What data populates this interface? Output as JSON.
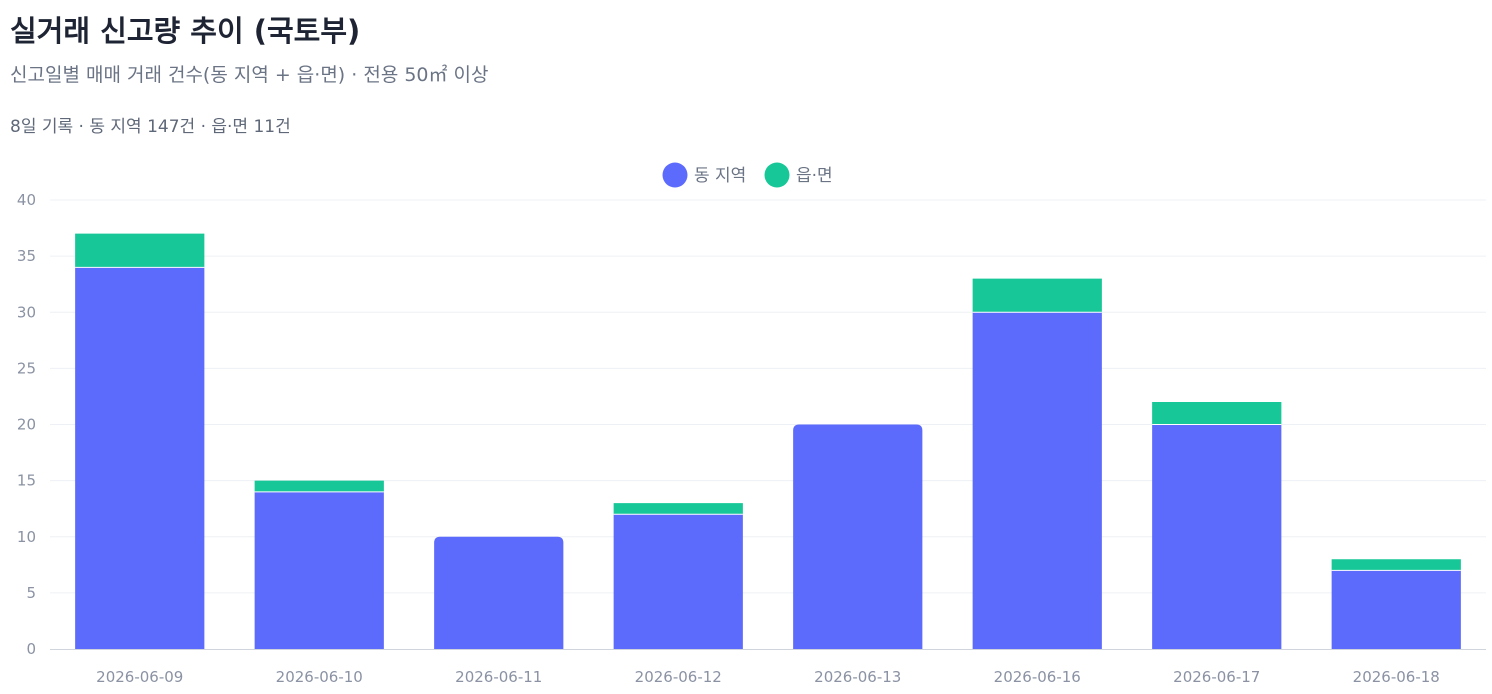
{
  "header": {
    "title": "실거래 신고량 추이 (국토부)",
    "subtitle": "신고일별 매매 거래 건수(동 지역 + 읍·면) · 전용 50㎡ 이상",
    "summary": "8일 기록 · 동 지역 147건 · 읍·면 11건"
  },
  "chart_data": {
    "type": "bar",
    "stacked": true,
    "categories": [
      "2026-06-09",
      "2026-06-10",
      "2026-06-11",
      "2026-06-12",
      "2026-06-13",
      "2026-06-16",
      "2026-06-17",
      "2026-06-18"
    ],
    "series": [
      {
        "name": "동 지역",
        "color": "#5d6bfc",
        "values": [
          34,
          14,
          10,
          12,
          20,
          30,
          20,
          7
        ]
      },
      {
        "name": "읍·면",
        "color": "#17c797",
        "values": [
          3,
          1,
          0,
          1,
          0,
          3,
          2,
          1
        ]
      }
    ],
    "ylim": [
      0,
      40
    ],
    "yticks": [
      0,
      5,
      10,
      15,
      20,
      25,
      30,
      35,
      40
    ],
    "grid": true,
    "legend_position": "top-center"
  }
}
